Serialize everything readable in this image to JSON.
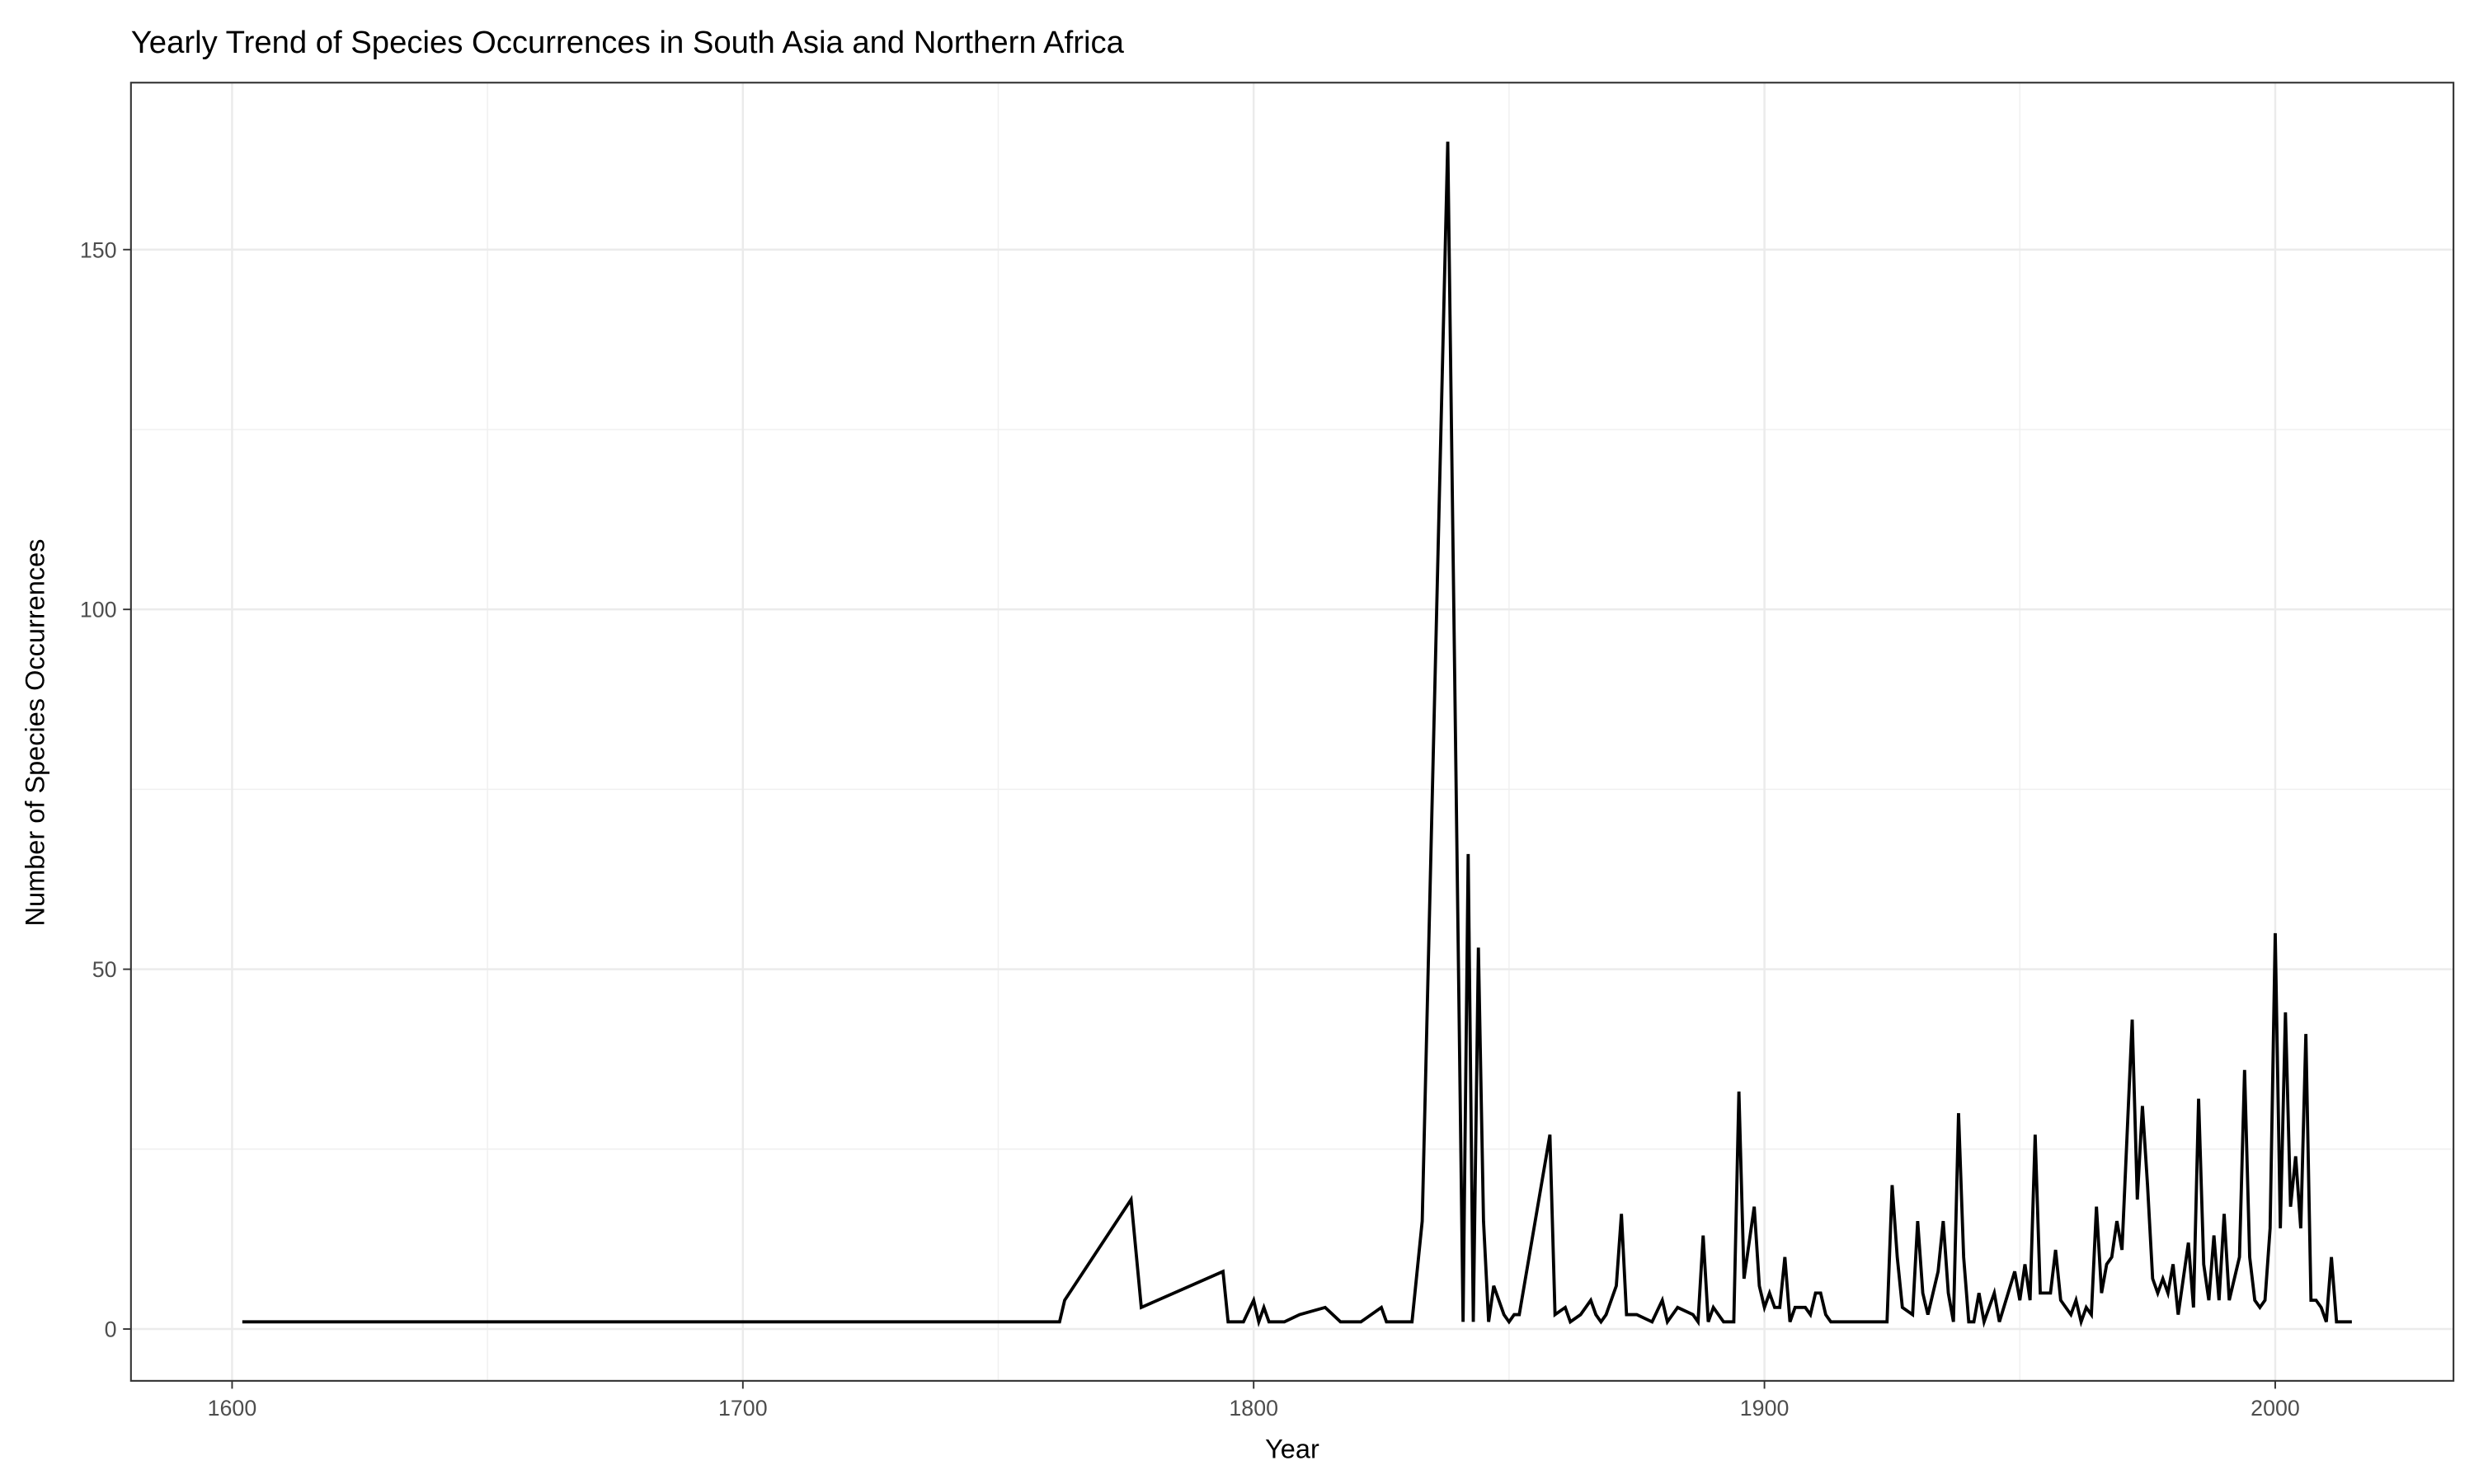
{
  "chart_data": {
    "type": "line",
    "title": "Yearly Trend of Species Occurrences in South Asia and Northern Africa",
    "x_label": "Year",
    "y_label": "Number of Species Occurrences",
    "x": [
      1602,
      1762,
      1763,
      1776,
      1778,
      1794,
      1795,
      1798,
      1800,
      1801,
      1802,
      1803,
      1806,
      1809,
      1814,
      1817,
      1821,
      1825,
      1826,
      1831,
      1833,
      1838,
      1841,
      1842,
      1843,
      1844,
      1845,
      1846,
      1847,
      1849,
      1850,
      1851,
      1852,
      1858,
      1859,
      1861,
      1862,
      1864,
      1866,
      1867,
      1868,
      1869,
      1871,
      1872,
      1873,
      1875,
      1878,
      1880,
      1881,
      1883,
      1886,
      1887,
      1888,
      1889,
      1890,
      1892,
      1894,
      1895,
      1896,
      1898,
      1899,
      1900,
      1901,
      1902,
      1903,
      1904,
      1905,
      1906,
      1908,
      1909,
      1910,
      1911,
      1912,
      1913,
      1924,
      1925,
      1926,
      1927,
      1929,
      1930,
      1931,
      1932,
      1934,
      1935,
      1936,
      1937,
      1938,
      1939,
      1940,
      1941,
      1942,
      1943,
      1945,
      1946,
      1949,
      1950,
      1951,
      1952,
      1953,
      1954,
      1956,
      1957,
      1958,
      1960,
      1961,
      1962,
      1963,
      1964,
      1965,
      1966,
      1967,
      1968,
      1969,
      1970,
      1972,
      1973,
      1974,
      1975,
      1976,
      1977,
      1978,
      1979,
      1980,
      1981,
      1983,
      1984,
      1985,
      1986,
      1987,
      1988,
      1989,
      1990,
      1991,
      1993,
      1994,
      1995,
      1996,
      1997,
      1998,
      1999,
      2000,
      2001,
      2002,
      2003,
      2004,
      2005,
      2006,
      2007,
      2008,
      2009,
      2010,
      2011,
      2012,
      2015
    ],
    "series": [
      {
        "color": "#000000",
        "values": [
          1,
          1,
          4,
          18,
          3,
          8,
          1,
          1,
          4,
          1,
          3,
          1,
          1,
          2,
          3,
          1,
          1,
          3,
          1,
          1,
          15,
          165,
          1,
          66,
          1,
          53,
          15,
          1,
          6,
          2,
          1,
          2,
          2,
          27,
          2,
          3,
          1,
          2,
          4,
          2,
          1,
          2,
          6,
          16,
          2,
          2,
          1,
          4,
          1,
          3,
          2,
          1,
          13,
          1,
          3,
          1,
          1,
          33,
          7,
          17,
          6,
          3,
          5,
          3,
          3,
          10,
          1,
          3,
          3,
          2,
          5,
          5,
          2,
          1,
          1,
          20,
          10,
          3,
          2,
          15,
          5,
          2,
          8,
          15,
          5,
          1,
          30,
          10,
          1,
          1,
          5,
          1,
          5,
          1,
          8,
          4,
          9,
          4,
          27,
          5,
          5,
          11,
          4,
          2,
          4,
          1,
          3,
          2,
          17,
          5,
          9,
          10,
          15,
          11,
          43,
          18,
          31,
          20,
          7,
          5,
          7,
          5,
          9,
          2,
          12,
          3,
          32,
          9,
          4,
          13,
          4,
          16,
          4,
          10,
          36,
          10,
          4,
          3,
          4,
          14,
          55,
          14,
          44,
          17,
          24,
          14,
          41,
          4,
          4,
          3,
          1,
          10,
          1,
          1
        ]
      }
    ],
    "xlim": [
      1580.2,
      2034.9
    ],
    "ylim": [
      -7.2,
      173.2
    ],
    "xticks": [
      1600,
      1700,
      1800,
      1900,
      2000
    ],
    "yticks": [
      0,
      50,
      100,
      150
    ],
    "grid": true
  }
}
